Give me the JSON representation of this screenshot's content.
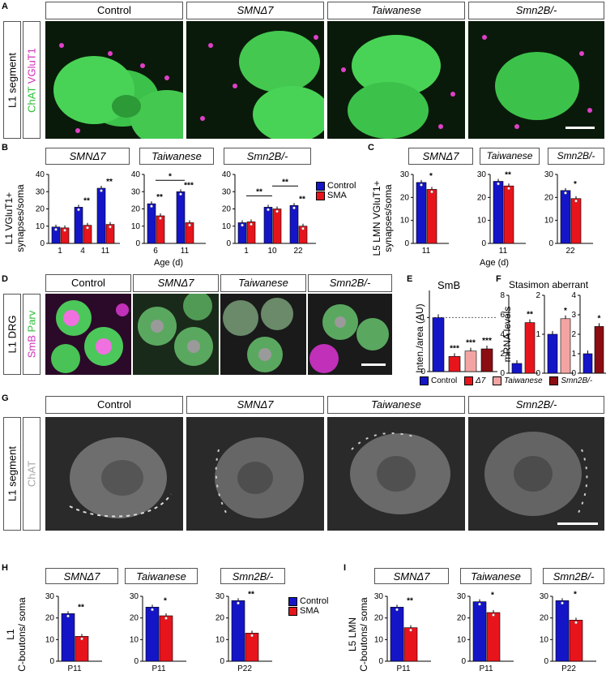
{
  "panels": {
    "A": {
      "letter": "A",
      "headers": [
        "Control",
        "SMNΔ7",
        "Taiwanese",
        "Smn2B/-"
      ],
      "side": "L1 segment",
      "stain1": "ChAT",
      "stain2": "VGluT1"
    },
    "B": {
      "letter": "B",
      "titles": [
        "SMNΔ7",
        "Taiwanese",
        "Smn2B/-"
      ],
      "ylabel1": "L1 VGluT1+",
      "ylabel2": "synapses/soma",
      "xlabel": "Age (d)",
      "legend": [
        "Control",
        "SMA"
      ]
    },
    "C": {
      "letter": "C",
      "titles": [
        "SMNΔ7",
        "Taiwanese",
        "Smn2B/-"
      ],
      "ylabel1": "L5 LMN VGluT1+",
      "ylabel2": "synapses/soma",
      "xlabel": "Age (d)"
    },
    "D": {
      "letter": "D",
      "headers": [
        "Control",
        "SMNΔ7",
        "Taiwanese",
        "Smn2B/-"
      ],
      "side": "L1 DRG",
      "stain1": "SmB",
      "stain2": "Parv"
    },
    "E": {
      "letter": "E",
      "title": "SmB",
      "ylabel": "Inten./area (AU)",
      "legend": [
        "Control",
        "Δ7",
        "Taiwanese",
        "Smn2B/-"
      ]
    },
    "F": {
      "letter": "F",
      "title": "Stasimon aberrant",
      "ylabel": "mRNA levels"
    },
    "G": {
      "letter": "G",
      "headers": [
        "Control",
        "SMNΔ7",
        "Taiwanese",
        "Smn2B/-"
      ],
      "side": "L1 segment",
      "stain": "ChAT"
    },
    "H": {
      "letter": "H",
      "titles": [
        "SMNΔ7",
        "Taiwanese",
        "Smn2B/-"
      ],
      "ylabel1": "L1",
      "ylabel2": "C-boutons/ soma",
      "legend": [
        "Control",
        "SMA"
      ]
    },
    "I": {
      "letter": "I",
      "titles": [
        "SMNΔ7",
        "Taiwanese",
        "Smn2B/-"
      ],
      "ylabel1": "L5 LMN",
      "ylabel2": "C-boutons/ soma"
    }
  },
  "colors": {
    "control": "#1515c8",
    "sma": "#e8141c",
    "taiwanese_light": "#f4a3a3",
    "smn2b_dark": "#8b0d12",
    "chat_green": "#3cd94a",
    "magenta": "#e040c8"
  },
  "chart_data": [
    {
      "id": "B1",
      "type": "bar",
      "title": "SMNΔ7",
      "categories": [
        "1",
        "4",
        "11"
      ],
      "series": [
        {
          "name": "Control",
          "values": [
            9.5,
            21,
            32
          ]
        },
        {
          "name": "SMA",
          "values": [
            9,
            10.5,
            11
          ]
        }
      ],
      "ylim": [
        0,
        40
      ],
      "yticks": [
        0,
        10,
        20,
        30,
        40
      ],
      "sig": [
        {
          "x": 1,
          "text": "**"
        },
        {
          "x": 2,
          "text": "**"
        }
      ]
    },
    {
      "id": "B2",
      "type": "bar",
      "title": "Taiwanese",
      "categories": [
        "6",
        "11"
      ],
      "series": [
        {
          "name": "Control",
          "values": [
            23,
            30
          ]
        },
        {
          "name": "SMA",
          "values": [
            16,
            12
          ]
        }
      ],
      "ylim": [
        0,
        40
      ],
      "yticks": [
        0,
        10,
        20,
        30,
        40
      ],
      "sig": [
        {
          "x": 0,
          "text": "**"
        },
        {
          "x": 1,
          "text": "***"
        },
        {
          "span": [
            0,
            1
          ],
          "text": "*"
        }
      ]
    },
    {
      "id": "B3",
      "type": "bar",
      "title": "Smn2B/-",
      "categories": [
        "1",
        "10",
        "22"
      ],
      "series": [
        {
          "name": "Control",
          "values": [
            12,
            21,
            22
          ]
        },
        {
          "name": "SMA",
          "values": [
            12.5,
            20,
            10
          ]
        }
      ],
      "ylim": [
        0,
        40
      ],
      "yticks": [
        0,
        10,
        20,
        30,
        40
      ],
      "sig": [
        {
          "x": 2,
          "text": "**"
        },
        {
          "span": [
            0,
            1
          ],
          "text": "**"
        },
        {
          "span": [
            1,
            2
          ],
          "text": "**"
        }
      ]
    },
    {
      "id": "C1",
      "type": "bar",
      "title": "SMNΔ7",
      "categories": [
        "11"
      ],
      "series": [
        {
          "name": "Control",
          "values": [
            26.5
          ]
        },
        {
          "name": "SMA",
          "values": [
            23.5
          ]
        }
      ],
      "ylim": [
        0,
        30
      ],
      "yticks": [
        0,
        10,
        20,
        30
      ],
      "sig": [
        {
          "x": 0,
          "text": "*"
        }
      ]
    },
    {
      "id": "C2",
      "type": "bar",
      "title": "Taiwanese",
      "categories": [
        "11"
      ],
      "series": [
        {
          "name": "Control",
          "values": [
            27
          ]
        },
        {
          "name": "SMA",
          "values": [
            25
          ]
        }
      ],
      "ylim": [
        0,
        30
      ],
      "yticks": [
        0,
        10,
        20,
        30
      ],
      "sig": [
        {
          "x": 0,
          "text": "**"
        }
      ]
    },
    {
      "id": "C3",
      "type": "bar",
      "title": "Smn2B/-",
      "categories": [
        "22"
      ],
      "series": [
        {
          "name": "Control",
          "values": [
            23
          ]
        },
        {
          "name": "SMA",
          "values": [
            19.5
          ]
        }
      ],
      "ylim": [
        0,
        30
      ],
      "yticks": [
        0,
        10,
        20,
        30
      ],
      "sig": [
        {
          "x": 0,
          "text": "*"
        }
      ]
    },
    {
      "id": "E",
      "type": "bar",
      "title": "SmB",
      "categories": [
        "Control",
        "Δ7",
        "Taiwanese",
        "Smn2B/-"
      ],
      "values": [
        1,
        0.28,
        0.38,
        0.42
      ],
      "ylim": [
        0,
        1.5
      ],
      "yticks": [
        0,
        1
      ],
      "sig": [
        "",
        "***",
        "***",
        "***"
      ]
    },
    {
      "id": "F1",
      "type": "bar",
      "categories": [
        "Control",
        "Δ7"
      ],
      "values": [
        1,
        5.2
      ],
      "ylim": [
        0,
        8
      ],
      "yticks": [
        0,
        2,
        4,
        6,
        8
      ],
      "sig": [
        "",
        "**"
      ]
    },
    {
      "id": "F2",
      "type": "bar",
      "categories": [
        "Control",
        "Taiwanese"
      ],
      "values": [
        1,
        1.4
      ],
      "ylim": [
        0,
        2
      ],
      "yticks": [
        0,
        1,
        2
      ],
      "sig": [
        "",
        "*"
      ]
    },
    {
      "id": "F3",
      "type": "bar",
      "categories": [
        "Control",
        "Smn2B/-"
      ],
      "values": [
        1,
        2.4
      ],
      "ylim": [
        0,
        4
      ],
      "yticks": [
        0,
        1,
        2,
        3,
        4
      ],
      "sig": [
        "",
        "*"
      ]
    },
    {
      "id": "H1",
      "type": "bar",
      "title": "SMNΔ7",
      "categories": [
        "P11"
      ],
      "series": [
        {
          "name": "Control",
          "values": [
            22
          ]
        },
        {
          "name": "SMA",
          "values": [
            11.5
          ]
        }
      ],
      "ylim": [
        0,
        30
      ],
      "yticks": [
        0,
        10,
        20,
        30
      ],
      "sig": [
        {
          "x": 0,
          "text": "**"
        }
      ]
    },
    {
      "id": "H2",
      "type": "bar",
      "title": "Taiwanese",
      "categories": [
        "P11"
      ],
      "series": [
        {
          "name": "Control",
          "values": [
            25
          ]
        },
        {
          "name": "SMA",
          "values": [
            21
          ]
        }
      ],
      "ylim": [
        0,
        30
      ],
      "yticks": [
        0,
        10,
        20,
        30
      ],
      "sig": [
        {
          "x": 0,
          "text": "*"
        }
      ]
    },
    {
      "id": "H3",
      "type": "bar",
      "title": "Smn2B/-",
      "categories": [
        "P22"
      ],
      "series": [
        {
          "name": "Control",
          "values": [
            28
          ]
        },
        {
          "name": "SMA",
          "values": [
            13
          ]
        }
      ],
      "ylim": [
        0,
        30
      ],
      "yticks": [
        0,
        10,
        20,
        30
      ],
      "sig": [
        {
          "x": 0,
          "text": "**"
        }
      ]
    },
    {
      "id": "I1",
      "type": "bar",
      "title": "SMNΔ7",
      "categories": [
        "P11"
      ],
      "series": [
        {
          "name": "Control",
          "values": [
            25
          ]
        },
        {
          "name": "SMA",
          "values": [
            15.5
          ]
        }
      ],
      "ylim": [
        0,
        30
      ],
      "yticks": [
        0,
        10,
        20,
        30
      ],
      "sig": [
        {
          "x": 0,
          "text": "**"
        }
      ]
    },
    {
      "id": "I2",
      "type": "bar",
      "title": "Taiwanese",
      "categories": [
        "P11"
      ],
      "series": [
        {
          "name": "Control",
          "values": [
            27.5
          ]
        },
        {
          "name": "SMA",
          "values": [
            22.5
          ]
        }
      ],
      "ylim": [
        0,
        30
      ],
      "yticks": [
        0,
        10,
        20,
        30
      ],
      "sig": [
        {
          "x": 0,
          "text": "*"
        }
      ]
    },
    {
      "id": "I3",
      "type": "bar",
      "title": "Smn2B/-",
      "categories": [
        "P22"
      ],
      "series": [
        {
          "name": "Control",
          "values": [
            28
          ]
        },
        {
          "name": "SMA",
          "values": [
            19
          ]
        }
      ],
      "ylim": [
        0,
        30
      ],
      "yticks": [
        0,
        10,
        20,
        30
      ],
      "sig": [
        {
          "x": 0,
          "text": "*"
        }
      ]
    }
  ]
}
